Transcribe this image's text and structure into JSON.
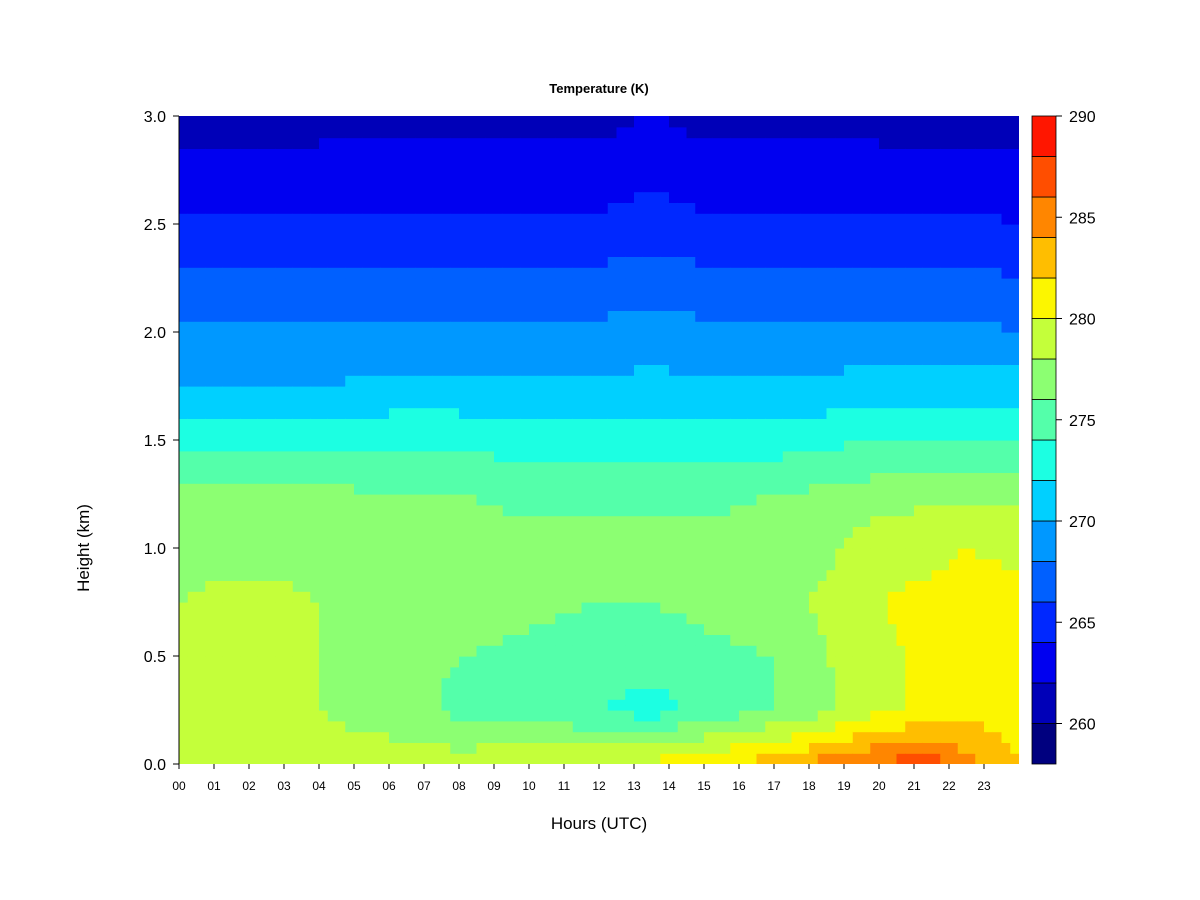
{
  "chart_data": {
    "type": "heatmap",
    "title": "Temperature (K)",
    "xlabel": "Hours (UTC)",
    "ylabel": "Height (km)",
    "x_tick_labels": [
      "00",
      "01",
      "02",
      "03",
      "04",
      "05",
      "06",
      "07",
      "08",
      "09",
      "10",
      "11",
      "12",
      "13",
      "14",
      "15",
      "16",
      "17",
      "18",
      "19",
      "20",
      "21",
      "22",
      "23"
    ],
    "x_ticks": [
      0,
      1,
      2,
      3,
      4,
      5,
      6,
      7,
      8,
      9,
      10,
      11,
      12,
      13,
      14,
      15,
      16,
      17,
      18,
      19,
      20,
      21,
      22,
      23
    ],
    "xlim": [
      0,
      24
    ],
    "y_tick_labels": [
      "0.0",
      "0.5",
      "1.0",
      "1.5",
      "2.0",
      "2.5",
      "3.0"
    ],
    "y_ticks": [
      0.0,
      0.5,
      1.0,
      1.5,
      2.0,
      2.5,
      3.0
    ],
    "ylim": [
      0,
      3
    ],
    "colorbar": {
      "tick_labels": [
        "260",
        "265",
        "270",
        "275",
        "280",
        "285",
        "290"
      ],
      "ticks": [
        260,
        265,
        270,
        275,
        280,
        285,
        290
      ],
      "range": [
        258,
        290
      ],
      "levels": [
        258,
        260,
        262,
        264,
        266,
        268,
        270,
        272,
        274,
        276,
        278,
        280,
        282,
        284,
        286,
        288,
        290
      ],
      "colors": [
        "#00007F",
        "#0000B8",
        "#0000F0",
        "#0028FF",
        "#0060FF",
        "#0098FF",
        "#00D0FF",
        "#1CFFE2",
        "#54FFAA",
        "#8CFF72",
        "#C4FF3A",
        "#FCF600",
        "#FFBE00",
        "#FF8600",
        "#FF4E00",
        "#FF1600",
        "#B80000"
      ]
    },
    "height_km": [
      0.0,
      0.25,
      0.5,
      0.75,
      1.0,
      1.25,
      1.5,
      1.75,
      2.0,
      2.25,
      2.5,
      2.75,
      3.0
    ],
    "hours": [
      0,
      2,
      4,
      6,
      8,
      10,
      12,
      13.5,
      15,
      17,
      18.5,
      20,
      21.5,
      22.5,
      24
    ],
    "temperature_K": [
      [
        280.0,
        279.5,
        279.0,
        279.0,
        279.0,
        279.5,
        280.0,
        280.5,
        281.5,
        283.0,
        285.0,
        286.5,
        287.0,
        284.5,
        282.0
      ],
      [
        278.5,
        278.5,
        278.0,
        277.0,
        275.5,
        275.0,
        274.0,
        273.0,
        274.5,
        276.0,
        277.5,
        279.5,
        280.5,
        281.5,
        281.0
      ],
      [
        278.0,
        278.5,
        278.0,
        277.0,
        276.0,
        275.5,
        275.0,
        275.0,
        275.5,
        276.0,
        278.0,
        279.5,
        280.5,
        281.5,
        281.0
      ],
      [
        278.0,
        278.5,
        278.0,
        277.5,
        277.0,
        276.5,
        276.0,
        276.0,
        276.5,
        277.0,
        278.5,
        280.0,
        280.5,
        281.0,
        280.5
      ],
      [
        277.5,
        277.5,
        277.5,
        277.5,
        277.0,
        276.5,
        276.5,
        276.5,
        276.5,
        277.0,
        277.5,
        279.5,
        279.5,
        280.0,
        279.5
      ],
      [
        276.5,
        276.5,
        276.5,
        276.0,
        276.0,
        275.5,
        275.5,
        275.5,
        275.5,
        276.0,
        276.5,
        277.0,
        277.5,
        277.5,
        277.5
      ],
      [
        273.5,
        273.5,
        273.5,
        273.5,
        273.5,
        273.0,
        273.0,
        273.0,
        273.0,
        273.0,
        273.5,
        274.0,
        274.0,
        274.0,
        274.0
      ],
      [
        270.0,
        270.0,
        270.0,
        270.5,
        270.5,
        270.5,
        270.5,
        270.5,
        270.5,
        270.5,
        270.5,
        271.0,
        271.0,
        271.0,
        271.0
      ],
      [
        268.5,
        268.5,
        268.5,
        268.5,
        268.5,
        268.5,
        268.5,
        269.0,
        268.5,
        268.5,
        268.5,
        268.5,
        268.5,
        268.5,
        268.0
      ],
      [
        266.5,
        266.5,
        266.5,
        266.5,
        266.5,
        266.5,
        266.5,
        267.0,
        266.5,
        266.5,
        266.5,
        266.5,
        266.5,
        266.5,
        266.0
      ],
      [
        264.5,
        264.5,
        264.5,
        264.5,
        264.5,
        264.5,
        264.5,
        265.0,
        264.5,
        264.5,
        264.5,
        264.5,
        264.5,
        264.5,
        264.0
      ],
      [
        262.5,
        262.5,
        262.5,
        262.5,
        262.5,
        262.5,
        262.5,
        263.5,
        262.5,
        262.5,
        262.5,
        262.5,
        262.5,
        262.5,
        262.5
      ],
      [
        261.0,
        261.0,
        261.5,
        261.5,
        261.5,
        261.5,
        261.5,
        262.0,
        261.5,
        261.5,
        261.5,
        261.5,
        261.0,
        261.0,
        261.0
      ]
    ]
  }
}
